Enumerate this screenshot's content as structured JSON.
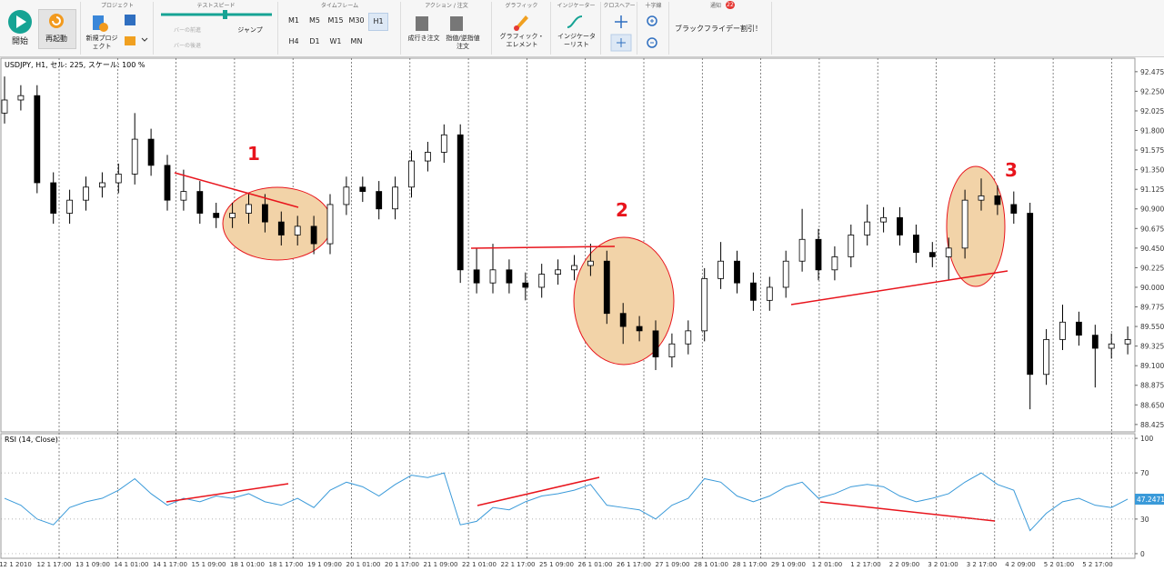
{
  "toolbar": {
    "start": "開始",
    "restart": "再起動",
    "project": {
      "title": "プロジェクト",
      "new": "新規プロジェクト"
    },
    "test_speed": {
      "title": "テストスピード",
      "step_forward": "バーの前進",
      "step_back": "バーの後退",
      "jump": "ジャンプ"
    },
    "timeframe": {
      "title": "タイムフレーム",
      "items": [
        "M1",
        "M5",
        "M15",
        "M30",
        "H1",
        "H4",
        "D1",
        "W1",
        "MN"
      ]
    },
    "action": {
      "title": "アクション / 注文",
      "market": "成行き注文",
      "pending": "指値/逆指値注文"
    },
    "graphics": {
      "title": "グラフィック",
      "elements": "グラフィック・エレメント"
    },
    "indicators": {
      "title": "インジケーター",
      "list": "インジケーターリスト"
    },
    "crosshair": {
      "title": "クロスヘアー"
    },
    "cross": {
      "title": "十字線"
    },
    "notifications": {
      "title": "通知",
      "count": "22",
      "message": "ブラックフライデー割引！"
    }
  },
  "chart_data": [
    {
      "type": "candlestick",
      "title": "USDJPY, H1, セル: 225, スケール: 100 %",
      "color": "#000000",
      "open": [
        92.0,
        92.15,
        92.2,
        91.2,
        90.85,
        91.0,
        91.15,
        91.2,
        91.3,
        91.7,
        91.4,
        91.0,
        91.1,
        90.85,
        90.8,
        90.85,
        90.95,
        90.75,
        90.6,
        90.7,
        90.5,
        90.95,
        91.15,
        91.1,
        90.9,
        91.15,
        91.45,
        91.55,
        91.75,
        90.2,
        90.05,
        90.2,
        90.05,
        90.0,
        90.15,
        90.2,
        90.25,
        90.3,
        89.7,
        89.55,
        89.5,
        89.2,
        89.35,
        89.5,
        90.1,
        90.3,
        90.05,
        89.85,
        90.0,
        90.3,
        90.55,
        90.2,
        90.35,
        90.6,
        90.75,
        90.8,
        90.6,
        90.4,
        90.35,
        90.45,
        91.0,
        91.05,
        90.95,
        90.85,
        89.0,
        89.4,
        89.6,
        89.45,
        89.3,
        89.35
      ],
      "high": [
        92.42,
        92.32,
        92.32,
        91.32,
        91.12,
        91.27,
        91.32,
        91.42,
        92.0,
        91.82,
        91.52,
        91.35,
        91.22,
        90.97,
        90.97,
        91.07,
        91.07,
        90.87,
        90.82,
        90.82,
        91.07,
        91.27,
        91.27,
        91.22,
        91.27,
        91.57,
        91.67,
        91.87,
        91.87,
        90.45,
        90.5,
        90.32,
        90.17,
        90.27,
        90.32,
        90.37,
        90.5,
        90.42,
        89.82,
        89.67,
        89.62,
        89.47,
        89.62,
        90.22,
        90.52,
        90.42,
        90.17,
        90.12,
        90.42,
        90.9,
        90.67,
        90.47,
        90.72,
        90.95,
        90.92,
        90.92,
        90.72,
        90.52,
        90.57,
        91.12,
        91.25,
        91.17,
        91.1,
        90.97,
        89.52,
        89.8,
        89.72,
        89.57,
        89.47,
        89.55
      ],
      "low": [
        91.88,
        92.03,
        91.08,
        90.73,
        90.73,
        90.88,
        91.03,
        91.08,
        91.18,
        91.28,
        90.88,
        90.88,
        90.73,
        90.68,
        90.68,
        90.73,
        90.63,
        90.48,
        90.48,
        90.38,
        90.38,
        90.83,
        90.98,
        90.78,
        90.78,
        91.03,
        91.33,
        91.43,
        90.05,
        89.93,
        89.93,
        89.93,
        89.85,
        89.88,
        90.03,
        90.08,
        90.13,
        89.58,
        89.35,
        89.38,
        89.05,
        89.08,
        89.23,
        89.38,
        89.98,
        89.93,
        89.73,
        89.73,
        89.88,
        90.18,
        90.08,
        90.08,
        90.23,
        90.48,
        90.63,
        90.48,
        90.28,
        90.23,
        90.08,
        90.33,
        90.88,
        90.83,
        90.73,
        88.6,
        88.88,
        89.28,
        89.33,
        88.85,
        89.18,
        89.23
      ],
      "close": [
        92.15,
        92.2,
        91.2,
        90.85,
        91.0,
        91.15,
        91.2,
        91.3,
        91.7,
        91.4,
        91.0,
        91.1,
        90.85,
        90.8,
        90.85,
        90.95,
        90.75,
        90.6,
        90.7,
        90.5,
        90.95,
        91.15,
        91.1,
        90.9,
        91.15,
        91.45,
        91.55,
        91.75,
        90.2,
        90.05,
        90.2,
        90.05,
        90.0,
        90.15,
        90.2,
        90.25,
        90.3,
        89.7,
        89.55,
        89.5,
        89.2,
        89.35,
        89.5,
        90.1,
        90.3,
        90.05,
        89.85,
        90.0,
        90.3,
        90.55,
        90.2,
        90.35,
        90.6,
        90.75,
        90.8,
        90.6,
        90.4,
        90.35,
        90.45,
        91.0,
        91.05,
        90.95,
        90.85,
        89.0,
        89.4,
        89.6,
        89.45,
        89.3,
        89.35,
        89.4
      ],
      "ylim": [
        88.34,
        92.63
      ],
      "yticks": [
        92.475,
        {
          "value": 92.25,
          "label": "92.250"
        },
        92.025,
        {
          "value": 91.8,
          "label": "91.800"
        },
        91.575,
        {
          "value": 91.35,
          "label": "91.350"
        },
        91.125,
        {
          "value": 90.9,
          "label": "90.900"
        },
        90.675,
        {
          "value": 90.45,
          "label": "90.450"
        },
        90.225,
        {
          "value": 90,
          "label": "90.000"
        },
        89.775,
        {
          "value": 89.55,
          "label": "89.550"
        },
        89.325,
        {
          "value": 89.1,
          "label": "89.100"
        },
        88.875,
        {
          "value": 88.65,
          "label": "88.650"
        },
        88.425
      ],
      "annotations": [
        "1",
        "2",
        "3"
      ]
    },
    {
      "type": "line",
      "title": "RSI (14, Close)",
      "color": "#3a9ad9",
      "grid": true,
      "values": [
        48,
        42,
        30,
        25,
        40,
        45,
        48,
        55,
        65,
        52,
        42,
        48,
        45,
        50,
        48,
        52,
        45,
        42,
        48,
        40,
        55,
        62,
        58,
        50,
        60,
        68,
        66,
        70,
        25,
        28,
        40,
        38,
        45,
        50,
        52,
        55,
        60,
        42,
        40,
        38,
        30,
        42,
        48,
        65,
        62,
        50,
        45,
        50,
        58,
        62,
        48,
        52,
        58,
        60,
        58,
        50,
        45,
        48,
        52,
        62,
        70,
        60,
        55,
        20,
        35,
        45,
        48,
        42,
        40,
        47.2471
      ],
      "ylim": [
        -4,
        104
      ],
      "yticks": [
        100,
        70,
        30,
        0
      ],
      "x_labels": [
        "12 1 2010",
        "12 1 17:00",
        "13 1 09:00",
        "14 1 01:00",
        "14 1 17:00",
        "15 1 09:00",
        "18 1 01:00",
        "18 1 17:00",
        "19 1 09:00",
        "20 1 01:00",
        "20 1 17:00",
        "21 1 09:00",
        "22 1 01:00",
        "22 1 17:00",
        "25 1 09:00",
        "26 1 01:00",
        "26 1 17:00",
        "27 1 09:00",
        "28 1 01:00",
        "28 1 17:00",
        "29 1 09:00",
        "1 2 01:00",
        "1 2 17:00",
        "2 2 09:00",
        "3 2 01:00",
        "3 2 17:00",
        "4 2 09:00",
        "5 2 01:00",
        "5 2 17:00"
      ]
    }
  ]
}
